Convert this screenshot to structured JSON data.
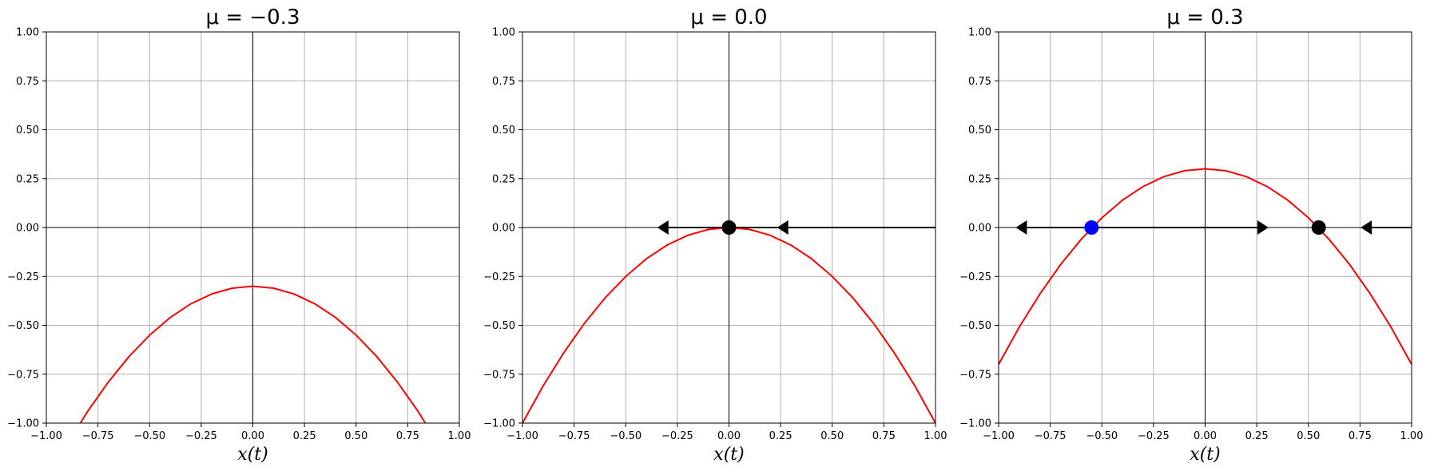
{
  "chart_data": [
    {
      "type": "line",
      "title": "μ = −0.3",
      "mu": -0.3,
      "xlabel": "x(t)",
      "ylabel": "",
      "xlim": [
        -1.0,
        1.0
      ],
      "ylim": [
        -1.0,
        1.0
      ],
      "xticks": [
        "−1.00",
        "−0.75",
        "−0.50",
        "−0.25",
        "0.00",
        "0.25",
        "0.50",
        "0.75",
        "1.00"
      ],
      "yticks": [
        "−1.00",
        "−0.75",
        "−0.50",
        "−0.25",
        "0.00",
        "0.25",
        "0.50",
        "0.75",
        "1.00"
      ],
      "grid": true,
      "curve": {
        "x": [
          -1.0,
          -0.9,
          -0.8,
          -0.7,
          -0.6,
          -0.5,
          -0.4,
          -0.3,
          -0.2,
          -0.1,
          0.0,
          0.1,
          0.2,
          0.3,
          0.4,
          0.5,
          0.6,
          0.7,
          0.8,
          0.9,
          1.0
        ],
        "y": [
          -1.3,
          -1.11,
          -0.94,
          -0.79,
          -0.66,
          -0.55,
          -0.46,
          -0.39,
          -0.34,
          -0.31,
          -0.3,
          -0.31,
          -0.34,
          -0.39,
          -0.46,
          -0.55,
          -0.66,
          -0.79,
          -0.94,
          -1.11,
          -1.3
        ],
        "color": "#ff0000"
      },
      "phase_line": null,
      "fixed_points": [],
      "arrows": []
    },
    {
      "type": "line",
      "title": "μ = 0.0",
      "mu": 0.0,
      "xlabel": "x(t)",
      "ylabel": "",
      "xlim": [
        -1.0,
        1.0
      ],
      "ylim": [
        -1.0,
        1.0
      ],
      "xticks": [
        "−1.00",
        "−0.75",
        "−0.50",
        "−0.25",
        "0.00",
        "0.25",
        "0.50",
        "0.75",
        "1.00"
      ],
      "yticks": [
        "−1.00",
        "−0.75",
        "−0.50",
        "−0.25",
        "0.00",
        "0.25",
        "0.50",
        "0.75",
        "1.00"
      ],
      "grid": true,
      "curve": {
        "x": [
          -1.0,
          -0.9,
          -0.8,
          -0.7,
          -0.6,
          -0.5,
          -0.4,
          -0.3,
          -0.2,
          -0.1,
          0.0,
          0.1,
          0.2,
          0.3,
          0.4,
          0.5,
          0.6,
          0.7,
          0.8,
          0.9,
          1.0
        ],
        "y": [
          -1.0,
          -0.81,
          -0.64,
          -0.49,
          -0.36,
          -0.25,
          -0.16,
          -0.09,
          -0.04,
          -0.01,
          0.0,
          -0.01,
          -0.04,
          -0.09,
          -0.16,
          -0.25,
          -0.36,
          -0.49,
          -0.64,
          -0.81,
          -1.0
        ],
        "color": "#ff0000"
      },
      "phase_line": [
        [
          -0.3,
          1.0
        ]
      ],
      "fixed_points": [
        {
          "x": 0.0,
          "y": 0.0,
          "color": "#000000"
        }
      ],
      "arrows": [
        {
          "x": -0.32,
          "direction": "left"
        },
        {
          "x": 0.26,
          "direction": "left"
        }
      ]
    },
    {
      "type": "line",
      "title": "μ = 0.3",
      "mu": 0.3,
      "xlabel": "x(t)",
      "ylabel": "",
      "xlim": [
        -1.0,
        1.0
      ],
      "ylim": [
        -1.0,
        1.0
      ],
      "xticks": [
        "−1.00",
        "−0.75",
        "−0.50",
        "−0.25",
        "0.00",
        "0.25",
        "0.50",
        "0.75",
        "1.00"
      ],
      "yticks": [
        "−1.00",
        "−0.75",
        "−0.50",
        "−0.25",
        "0.00",
        "0.25",
        "0.50",
        "0.75",
        "1.00"
      ],
      "grid": true,
      "curve": {
        "x": [
          -1.0,
          -0.9,
          -0.8,
          -0.7,
          -0.6,
          -0.5,
          -0.4,
          -0.3,
          -0.2,
          -0.1,
          0.0,
          0.1,
          0.2,
          0.3,
          0.4,
          0.5,
          0.6,
          0.7,
          0.8,
          0.9,
          1.0
        ],
        "y": [
          -0.7,
          -0.51,
          -0.34,
          -0.19,
          -0.06,
          0.05,
          0.14,
          0.21,
          0.26,
          0.29,
          0.3,
          0.29,
          0.26,
          0.21,
          0.14,
          0.05,
          -0.06,
          -0.19,
          -0.34,
          -0.51,
          -0.7
        ],
        "color": "#ff0000"
      },
      "phase_line": [
        [
          -0.89,
          0.26
        ],
        [
          0.78,
          1.0
        ]
      ],
      "fixed_points": [
        {
          "x": -0.55,
          "y": 0.0,
          "color": "#0000ff"
        },
        {
          "x": 0.55,
          "y": 0.0,
          "color": "#000000"
        }
      ],
      "arrows": [
        {
          "x": -0.89,
          "direction": "left"
        },
        {
          "x": 0.28,
          "direction": "right"
        },
        {
          "x": 0.78,
          "direction": "left"
        }
      ]
    }
  ]
}
